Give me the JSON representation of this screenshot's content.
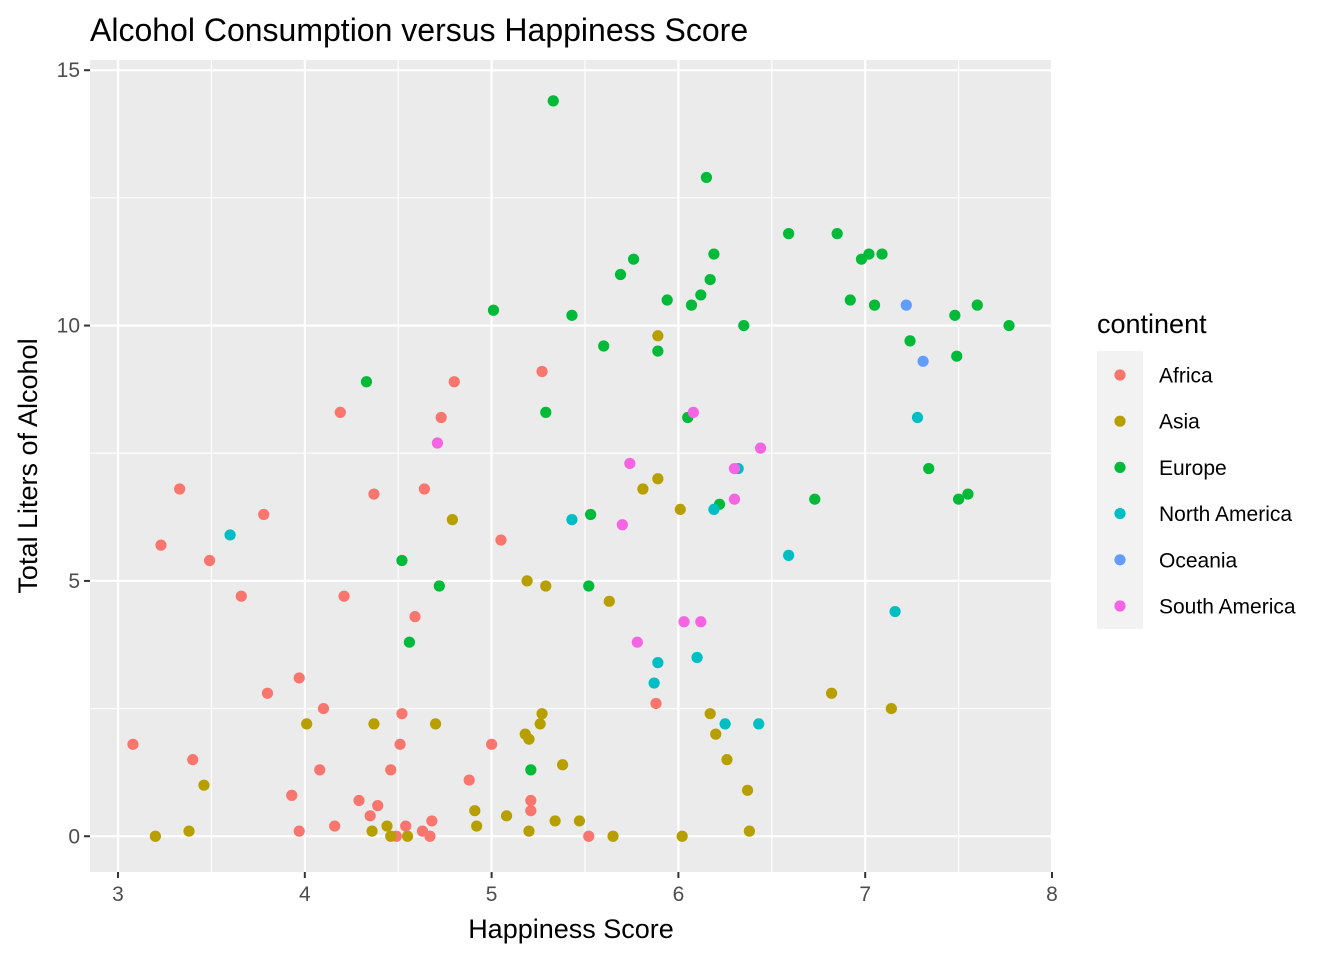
{
  "chart_data": {
    "type": "scatter",
    "title": "Alcohol Consumption versus Happiness Score",
    "xlabel": "Happiness Score",
    "ylabel": "Total Liters of Alcohol",
    "xlim": [
      2.85,
      8.0
    ],
    "ylim": [
      -0.7,
      15.2
    ],
    "x_ticks": [
      3,
      4,
      5,
      6,
      7,
      8
    ],
    "y_ticks": [
      0,
      5,
      10,
      15
    ],
    "grid": true,
    "panel_background": "#ebebeb",
    "legend_position": "right",
    "legend_title": "continent",
    "series": [
      {
        "name": "Africa",
        "color": "#F8766D",
        "points": [
          [
            3.08,
            1.8
          ],
          [
            3.23,
            5.7
          ],
          [
            3.33,
            6.8
          ],
          [
            3.4,
            1.5
          ],
          [
            3.49,
            5.4
          ],
          [
            3.66,
            4.7
          ],
          [
            3.78,
            6.3
          ],
          [
            3.8,
            2.8
          ],
          [
            3.93,
            0.8
          ],
          [
            3.97,
            3.1
          ],
          [
            3.97,
            0.1
          ],
          [
            4.08,
            1.3
          ],
          [
            4.1,
            2.5
          ],
          [
            4.16,
            0.2
          ],
          [
            4.19,
            8.3
          ],
          [
            4.21,
            4.7
          ],
          [
            4.29,
            0.7
          ],
          [
            4.35,
            0.4
          ],
          [
            4.37,
            6.7
          ],
          [
            4.39,
            0.6
          ],
          [
            4.46,
            1.3
          ],
          [
            4.49,
            0.0
          ],
          [
            4.51,
            1.8
          ],
          [
            4.52,
            2.4
          ],
          [
            4.54,
            0.2
          ],
          [
            4.59,
            4.3
          ],
          [
            4.63,
            0.1
          ],
          [
            4.64,
            6.8
          ],
          [
            4.67,
            0.0
          ],
          [
            4.68,
            0.3
          ],
          [
            4.73,
            8.2
          ],
          [
            4.8,
            8.9
          ],
          [
            4.88,
            1.1
          ],
          [
            5.0,
            1.8
          ],
          [
            5.05,
            5.8
          ],
          [
            5.21,
            0.7
          ],
          [
            5.21,
            0.5
          ],
          [
            5.27,
            9.1
          ],
          [
            5.52,
            0.0
          ],
          [
            5.88,
            2.6
          ]
        ]
      },
      {
        "name": "Asia",
        "color": "#B79F00",
        "points": [
          [
            3.2,
            0.0
          ],
          [
            3.38,
            0.1
          ],
          [
            3.46,
            1.0
          ],
          [
            4.01,
            2.2
          ],
          [
            4.36,
            0.1
          ],
          [
            4.37,
            2.2
          ],
          [
            4.44,
            0.2
          ],
          [
            4.46,
            0.0
          ],
          [
            4.55,
            0.0
          ],
          [
            4.7,
            2.2
          ],
          [
            4.79,
            6.2
          ],
          [
            4.91,
            0.5
          ],
          [
            4.92,
            0.2
          ],
          [
            5.08,
            0.4
          ],
          [
            5.18,
            2.0
          ],
          [
            5.19,
            5.0
          ],
          [
            5.2,
            1.9
          ],
          [
            5.2,
            0.1
          ],
          [
            5.26,
            2.2
          ],
          [
            5.27,
            2.4
          ],
          [
            5.29,
            4.9
          ],
          [
            5.34,
            0.3
          ],
          [
            5.38,
            1.4
          ],
          [
            5.47,
            0.3
          ],
          [
            5.63,
            4.6
          ],
          [
            5.65,
            0.0
          ],
          [
            5.81,
            6.8
          ],
          [
            5.89,
            9.8
          ],
          [
            5.89,
            7.0
          ],
          [
            6.01,
            6.4
          ],
          [
            6.02,
            0.0
          ],
          [
            6.17,
            2.4
          ],
          [
            6.2,
            2.0
          ],
          [
            6.26,
            1.5
          ],
          [
            6.37,
            0.9
          ],
          [
            6.38,
            0.1
          ],
          [
            6.82,
            2.8
          ],
          [
            7.14,
            2.5
          ]
        ]
      },
      {
        "name": "Europe",
        "color": "#00BA38",
        "points": [
          [
            4.33,
            8.9
          ],
          [
            4.52,
            5.4
          ],
          [
            4.56,
            3.8
          ],
          [
            4.72,
            4.9
          ],
          [
            5.01,
            10.3
          ],
          [
            5.21,
            1.3
          ],
          [
            5.29,
            8.3
          ],
          [
            5.33,
            14.4
          ],
          [
            5.43,
            10.2
          ],
          [
            5.52,
            4.9
          ],
          [
            5.53,
            6.3
          ],
          [
            5.6,
            9.6
          ],
          [
            5.69,
            11.0
          ],
          [
            5.76,
            11.3
          ],
          [
            5.89,
            9.5
          ],
          [
            5.94,
            10.5
          ],
          [
            6.05,
            8.2
          ],
          [
            6.07,
            10.4
          ],
          [
            6.12,
            10.6
          ],
          [
            6.15,
            12.9
          ],
          [
            6.17,
            10.9
          ],
          [
            6.19,
            11.4
          ],
          [
            6.22,
            6.5
          ],
          [
            6.35,
            10.0
          ],
          [
            6.59,
            11.8
          ],
          [
            6.73,
            6.6
          ],
          [
            6.85,
            11.8
          ],
          [
            6.92,
            10.5
          ],
          [
            6.98,
            11.3
          ],
          [
            7.02,
            11.4
          ],
          [
            7.05,
            10.4
          ],
          [
            7.09,
            11.4
          ],
          [
            7.24,
            9.7
          ],
          [
            7.34,
            7.2
          ],
          [
            7.48,
            10.2
          ],
          [
            7.49,
            9.4
          ],
          [
            7.5,
            6.6
          ],
          [
            7.55,
            6.7
          ],
          [
            7.6,
            10.4
          ],
          [
            7.77,
            10.0
          ]
        ]
      },
      {
        "name": "North America",
        "color": "#00BFC4",
        "points": [
          [
            3.6,
            5.9
          ],
          [
            5.43,
            6.2
          ],
          [
            5.87,
            3.0
          ],
          [
            5.89,
            3.4
          ],
          [
            6.1,
            3.5
          ],
          [
            6.19,
            6.4
          ],
          [
            6.25,
            2.2
          ],
          [
            6.32,
            7.2
          ],
          [
            6.43,
            2.2
          ],
          [
            6.59,
            5.5
          ],
          [
            7.16,
            4.4
          ],
          [
            7.28,
            8.2
          ]
        ]
      },
      {
        "name": "Oceania",
        "color": "#619CFF",
        "points": [
          [
            7.22,
            10.4
          ],
          [
            7.31,
            9.3
          ]
        ]
      },
      {
        "name": "South America",
        "color": "#F564E3",
        "points": [
          [
            4.71,
            7.7
          ],
          [
            5.7,
            6.1
          ],
          [
            5.74,
            7.3
          ],
          [
            5.78,
            3.8
          ],
          [
            6.03,
            4.2
          ],
          [
            6.08,
            8.3
          ],
          [
            6.12,
            4.2
          ],
          [
            6.3,
            7.2
          ],
          [
            6.3,
            6.6
          ],
          [
            6.44,
            7.6
          ]
        ]
      }
    ]
  }
}
